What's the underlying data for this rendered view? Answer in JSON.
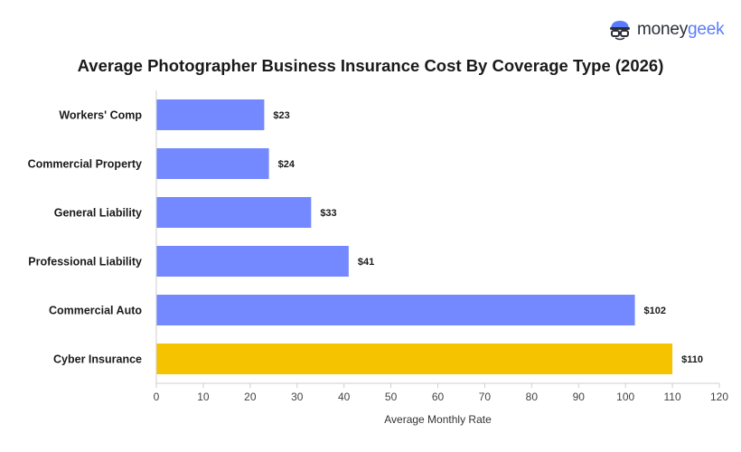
{
  "brand": {
    "name_part1": "money",
    "name_part2": "geek"
  },
  "chart_data": {
    "type": "bar",
    "orientation": "horizontal",
    "title": "Average Photographer Business Insurance Cost By Coverage Type (2026)",
    "xlabel": "Average Monthly Rate",
    "ylabel": "",
    "xlim": [
      0,
      120
    ],
    "xticks": [
      0,
      10,
      20,
      30,
      40,
      50,
      60,
      70,
      80,
      90,
      100,
      110,
      120
    ],
    "categories": [
      "Workers' Comp",
      "Commercial Property",
      "General Liability",
      "Professional Liability",
      "Commercial Auto",
      "Cyber Insurance"
    ],
    "values": [
      23,
      24,
      33,
      41,
      102,
      110
    ],
    "value_labels": [
      "$23",
      "$24",
      "$33",
      "$41",
      "$102",
      "$110"
    ],
    "colors": [
      "#7488ff",
      "#7488ff",
      "#7488ff",
      "#7488ff",
      "#7488ff",
      "#f5c300"
    ],
    "grid": false
  }
}
